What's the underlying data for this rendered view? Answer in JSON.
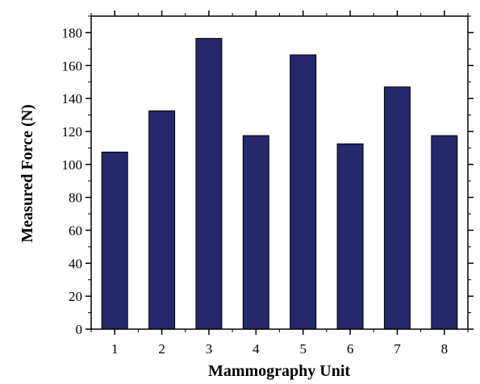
{
  "colors": {
    "bar_fill": "#25286b",
    "bar_stroke": "#000000",
    "axis": "#000000",
    "background": "#ffffff"
  },
  "chart_data": {
    "type": "bar",
    "categories": [
      "1",
      "2",
      "3",
      "4",
      "5",
      "6",
      "7",
      "8"
    ],
    "values": [
      107.5,
      132.5,
      176.5,
      117.5,
      166.5,
      112.5,
      147,
      117.5
    ],
    "title": "",
    "xlabel": "Mammography Unit",
    "ylabel": "Measured Force (N)",
    "ylim": [
      0,
      190
    ],
    "yticks": [
      0,
      20,
      40,
      60,
      80,
      100,
      120,
      140,
      160,
      180
    ],
    "grid": false,
    "legend": "none"
  }
}
